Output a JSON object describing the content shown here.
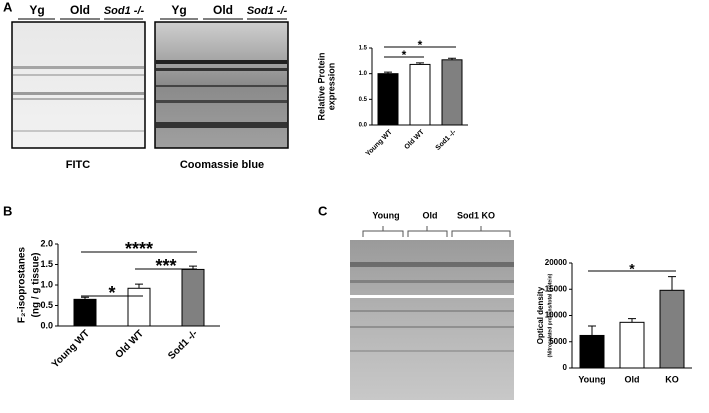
{
  "panels": {
    "a": "A",
    "b": "B",
    "c": "C"
  },
  "gel_a": {
    "lanes": [
      "Yg",
      "Old",
      "Sod1 -/-"
    ],
    "caption": "FITC"
  },
  "gel_b": {
    "lanes": [
      "Yg",
      "Old",
      "Sod1 -/-"
    ],
    "caption": "Coomassie blue"
  },
  "gel_c": {
    "lanes": [
      "Young",
      "Old",
      "Sod1 KO"
    ]
  },
  "chart_data": [
    {
      "type": "bar",
      "ylabel": [
        "Relative Protein",
        "expression"
      ],
      "categories": [
        "Young WT",
        "Old WT",
        "Sod1 -/-"
      ],
      "values": [
        1.0,
        1.18,
        1.27
      ],
      "errors": [
        0.03,
        0.03,
        0.03
      ],
      "colors": [
        "#000000",
        "#ffffff",
        "#808080"
      ],
      "ylim": [
        0,
        1.5
      ],
      "yticks": [
        {
          "value": 0,
          "label": "0.0"
        },
        {
          "value": 0.5,
          "label": "0.5"
        },
        {
          "value": 1,
          "label": "1.0"
        },
        {
          "value": 1.5,
          "label": "1.5"
        }
      ],
      "annotations": [
        "*",
        "*"
      ]
    },
    {
      "type": "bar",
      "ylabel": [
        "F₂-isoprostanes",
        "(ng / g tissue)"
      ],
      "categories": [
        "Young WT",
        "Old WT",
        "Sod1 -/-"
      ],
      "values": [
        0.65,
        0.92,
        1.38
      ],
      "errors": [
        0.05,
        0.1,
        0.08
      ],
      "colors": [
        "#000000",
        "#ffffff",
        "#808080"
      ],
      "ylim": [
        0,
        2
      ],
      "yticks": [
        {
          "value": 0,
          "label": "0.0"
        },
        {
          "value": 0.5,
          "label": "0.5"
        },
        {
          "value": 1,
          "label": "1.0"
        },
        {
          "value": 1.5,
          "label": "1.5"
        },
        {
          "value": 2,
          "label": "2.0"
        }
      ],
      "annotations": [
        "*",
        "***",
        "****"
      ]
    },
    {
      "type": "bar",
      "ylabel": [
        "Optical density",
        "(Nitrosylated proteins/total protein)"
      ],
      "categories": [
        "Young",
        "Old",
        "KO"
      ],
      "values": [
        6200,
        8700,
        14800
      ],
      "errors": [
        1800,
        700,
        2600
      ],
      "colors": [
        "#000000",
        "#ffffff",
        "#808080"
      ],
      "ylim": [
        0,
        20000
      ],
      "yticks": [
        0,
        5000,
        10000,
        15000,
        20000
      ],
      "annotations": [
        "*"
      ]
    }
  ]
}
